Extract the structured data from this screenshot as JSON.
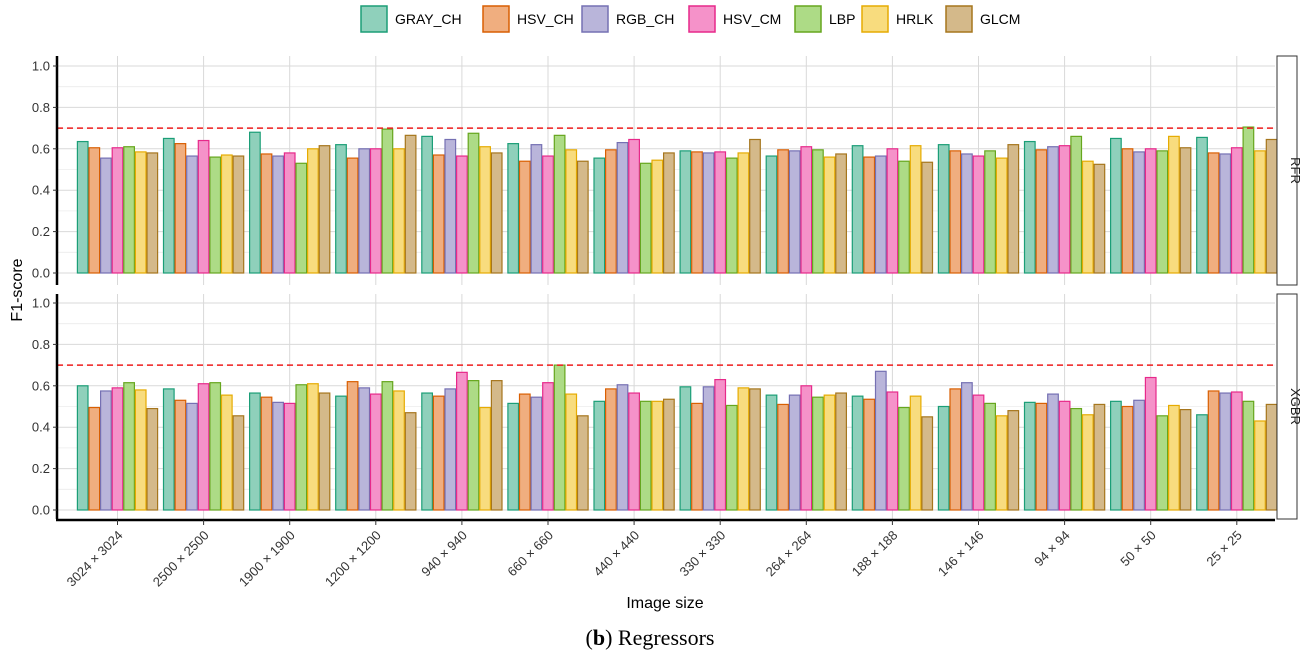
{
  "chart_data": {
    "type": "bar",
    "xlabel": "Image size",
    "ylabel": "F1-score",
    "ylim": [
      0,
      1.0
    ],
    "yticks": [
      "0.0",
      "0.2",
      "0.4",
      "0.6",
      "0.8",
      "1.0"
    ],
    "threshold": 0.7,
    "caption_label": "b",
    "caption_text": ") Regressors",
    "categories": [
      "3024 × 3024",
      "2500 × 2500",
      "1900 × 1900",
      "1200 × 1200",
      "940 × 940",
      "660 × 660",
      "440 × 440",
      "330 × 330",
      "264 × 264",
      "188 × 188",
      "146 × 146",
      "94 × 94",
      "50 × 50",
      "25 × 25"
    ],
    "series_meta": [
      {
        "name": "GRAY_CH",
        "fill": "#8fd0bb",
        "stroke": "#1b9e77"
      },
      {
        "name": "HSV_CH",
        "fill": "#f0ae7f",
        "stroke": "#d95f02"
      },
      {
        "name": "RGB_CH",
        "fill": "#b9b5da",
        "stroke": "#7570b3"
      },
      {
        "name": "HSV_CM",
        "fill": "#f592c9",
        "stroke": "#e7298a"
      },
      {
        "name": "LBP",
        "fill": "#addb86",
        "stroke": "#66a61e"
      },
      {
        "name": "HRLK",
        "fill": "#f8dc7e",
        "stroke": "#e6ab02"
      },
      {
        "name": "GLCM",
        "fill": "#d4b98a",
        "stroke": "#a6761d"
      }
    ],
    "panels": [
      {
        "name": "RFR",
        "series": [
          {
            "name": "GRAY_CH",
            "values": [
              0.635,
              0.65,
              0.68,
              0.62,
              0.66,
              0.625,
              0.555,
              0.59,
              0.565,
              0.615,
              0.62,
              0.635,
              0.65,
              0.655
            ]
          },
          {
            "name": "HSV_CH",
            "values": [
              0.605,
              0.625,
              0.575,
              0.555,
              0.57,
              0.54,
              0.595,
              0.585,
              0.595,
              0.56,
              0.59,
              0.595,
              0.6,
              0.58
            ]
          },
          {
            "name": "RGB_CH",
            "values": [
              0.555,
              0.565,
              0.565,
              0.6,
              0.645,
              0.62,
              0.63,
              0.58,
              0.59,
              0.565,
              0.575,
              0.61,
              0.585,
              0.575
            ]
          },
          {
            "name": "HSV_CM",
            "values": [
              0.605,
              0.64,
              0.58,
              0.6,
              0.565,
              0.565,
              0.645,
              0.585,
              0.61,
              0.6,
              0.565,
              0.615,
              0.6,
              0.605
            ]
          },
          {
            "name": "LBP",
            "values": [
              0.61,
              0.56,
              0.53,
              0.695,
              0.675,
              0.665,
              0.53,
              0.555,
              0.595,
              0.54,
              0.59,
              0.66,
              0.59,
              0.705
            ]
          },
          {
            "name": "HRLK",
            "values": [
              0.585,
              0.57,
              0.6,
              0.6,
              0.61,
              0.595,
              0.545,
              0.58,
              0.56,
              0.615,
              0.555,
              0.54,
              0.66,
              0.59
            ]
          },
          {
            "name": "GLCM",
            "values": [
              0.58,
              0.565,
              0.615,
              0.665,
              0.58,
              0.54,
              0.58,
              0.645,
              0.575,
              0.535,
              0.62,
              0.525,
              0.605,
              0.645
            ]
          }
        ]
      },
      {
        "name": "XGBR",
        "series": [
          {
            "name": "GRAY_CH",
            "values": [
              0.6,
              0.585,
              0.565,
              0.55,
              0.565,
              0.515,
              0.525,
              0.595,
              0.555,
              0.55,
              0.5,
              0.52,
              0.525,
              0.46
            ]
          },
          {
            "name": "HSV_CH",
            "values": [
              0.495,
              0.53,
              0.545,
              0.62,
              0.55,
              0.56,
              0.585,
              0.515,
              0.51,
              0.535,
              0.585,
              0.515,
              0.5,
              0.575
            ]
          },
          {
            "name": "RGB_CH",
            "values": [
              0.575,
              0.515,
              0.52,
              0.59,
              0.585,
              0.545,
              0.605,
              0.595,
              0.555,
              0.67,
              0.615,
              0.56,
              0.53,
              0.565
            ]
          },
          {
            "name": "HSV_CM",
            "values": [
              0.59,
              0.61,
              0.515,
              0.56,
              0.665,
              0.615,
              0.565,
              0.63,
              0.6,
              0.57,
              0.555,
              0.525,
              0.64,
              0.57
            ]
          },
          {
            "name": "LBP",
            "values": [
              0.615,
              0.615,
              0.605,
              0.62,
              0.625,
              0.7,
              0.525,
              0.505,
              0.545,
              0.495,
              0.515,
              0.49,
              0.455,
              0.525
            ]
          },
          {
            "name": "HRLK",
            "values": [
              0.58,
              0.555,
              0.61,
              0.575,
              0.495,
              0.56,
              0.525,
              0.59,
              0.555,
              0.55,
              0.455,
              0.46,
              0.505,
              0.43
            ]
          },
          {
            "name": "GLCM",
            "values": [
              0.49,
              0.455,
              0.565,
              0.47,
              0.625,
              0.455,
              0.535,
              0.585,
              0.565,
              0.45,
              0.48,
              0.51,
              0.485,
              0.51
            ]
          }
        ]
      }
    ]
  }
}
